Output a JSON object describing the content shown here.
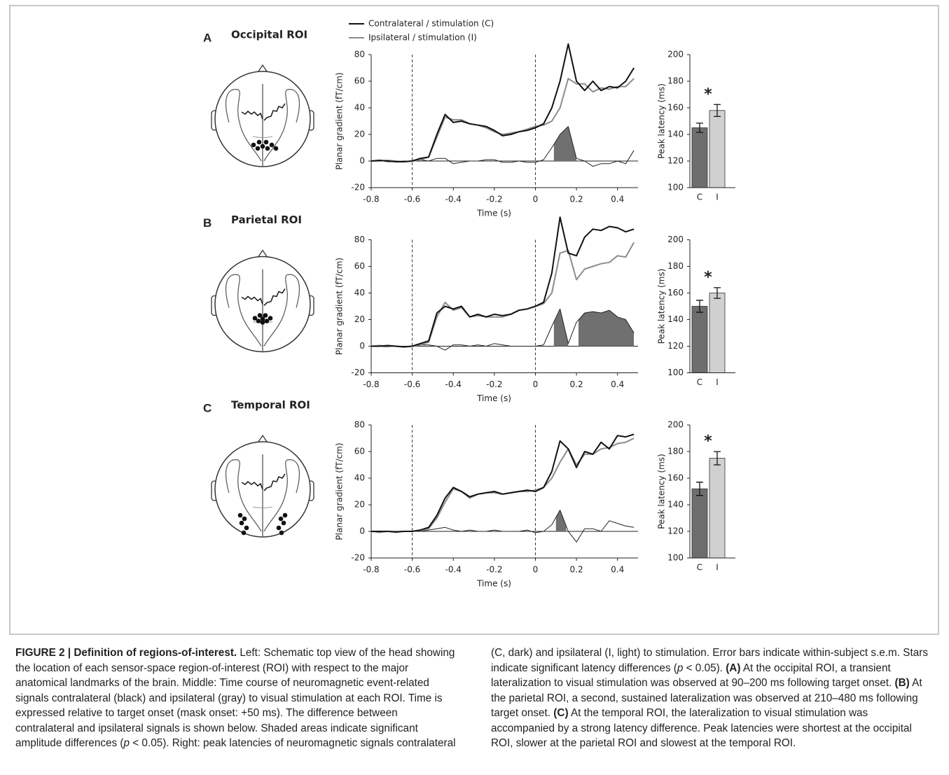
{
  "chart_data": [
    {
      "type": "line",
      "panel_label": "A",
      "title": "Occipital ROI",
      "xlabel": "Time (s)",
      "ylabel": "Planar gradient (fT/cm)",
      "xlim": [
        -0.8,
        0.5
      ],
      "ylim": [
        -20,
        80
      ],
      "xticks": [
        -0.8,
        -0.6,
        -0.4,
        -0.2,
        0,
        0.2,
        0.4
      ],
      "yticks": [
        -20,
        0,
        20,
        40,
        60,
        80
      ],
      "vlines": [
        -0.6,
        0
      ],
      "shaded": [
        [
          0.09,
          0.2
        ]
      ],
      "shade_color": "#707070",
      "x": [
        -0.8,
        -0.76,
        -0.72,
        -0.68,
        -0.64,
        -0.6,
        -0.56,
        -0.52,
        -0.48,
        -0.44,
        -0.4,
        -0.36,
        -0.32,
        -0.28,
        -0.24,
        -0.2,
        -0.16,
        -0.12,
        -0.08,
        -0.04,
        0,
        0.04,
        0.08,
        0.12,
        0.16,
        0.2,
        0.24,
        0.28,
        0.32,
        0.36,
        0.4,
        0.44,
        0.48
      ],
      "series": [
        {
          "name": "Contralateral / stimulation (C)",
          "color": "#111111",
          "values": [
            0,
            0.5,
            0,
            -0.5,
            -0.5,
            0,
            2,
            3,
            20,
            35,
            29,
            30,
            28,
            27,
            26,
            23,
            19,
            20,
            22,
            23,
            25,
            28,
            40,
            60,
            88,
            60,
            53,
            60,
            53,
            56,
            55,
            60,
            70
          ]
        },
        {
          "name": "Ipsilateral / stimulation (I)",
          "color": "#8c8c8c",
          "values": [
            0,
            0,
            0.5,
            0,
            -0.5,
            0,
            1,
            3,
            18,
            33,
            31,
            31,
            28,
            27,
            25,
            22,
            20,
            21,
            22,
            24,
            26,
            27,
            30,
            40,
            62,
            58,
            58,
            52,
            55,
            54,
            56,
            56,
            62
          ]
        },
        {
          "color": "#222222",
          "values": [
            0,
            0.5,
            -0.5,
            -0.5,
            0,
            0,
            1,
            0,
            2,
            2,
            -2,
            -1,
            0,
            0,
            1,
            1,
            -1,
            -1,
            0,
            -1,
            -1,
            1,
            10,
            20,
            26,
            2,
            0,
            -4,
            -2,
            -2,
            0,
            -2,
            8
          ]
        }
      ]
    },
    {
      "type": "bar",
      "ylabel": "Peak latency (ms)",
      "categories": [
        "C",
        "I"
      ],
      "values": [
        145,
        158
      ],
      "errors": [
        3.5,
        4.5
      ],
      "colors": [
        "#6e6e6e",
        "#d0d0d0"
      ],
      "ylim": [
        100,
        200
      ],
      "yticks": [
        100,
        120,
        140,
        160,
        180,
        200
      ],
      "annotation": "*"
    },
    {
      "type": "line",
      "panel_label": "B",
      "title": "Parietal ROI",
      "xlabel": "Time (s)",
      "ylabel": "Planar gradient (fT/cm)",
      "xlim": [
        -0.8,
        0.5
      ],
      "ylim": [
        -20,
        80
      ],
      "xticks": [
        -0.8,
        -0.6,
        -0.4,
        -0.2,
        0,
        0.2,
        0.4
      ],
      "yticks": [
        -20,
        0,
        20,
        40,
        60,
        80
      ],
      "vlines": [
        -0.6,
        0
      ],
      "shaded": [
        [
          0.09,
          0.16
        ],
        [
          0.21,
          0.48
        ]
      ],
      "shade_color": "#707070",
      "x": [
        -0.8,
        -0.76,
        -0.72,
        -0.68,
        -0.64,
        -0.6,
        -0.56,
        -0.52,
        -0.48,
        -0.44,
        -0.4,
        -0.36,
        -0.32,
        -0.28,
        -0.24,
        -0.2,
        -0.16,
        -0.12,
        -0.08,
        -0.04,
        0,
        0.04,
        0.08,
        0.12,
        0.16,
        0.2,
        0.24,
        0.28,
        0.32,
        0.36,
        0.4,
        0.44,
        0.48
      ],
      "series": [
        {
          "color": "#111111",
          "values": [
            0,
            0,
            0.5,
            0,
            -0.5,
            0,
            2,
            4,
            25,
            30,
            28,
            30,
            22,
            24,
            22,
            24,
            23,
            24,
            27,
            28,
            30,
            33,
            55,
            97,
            70,
            68,
            82,
            88,
            87,
            90,
            89,
            86,
            88
          ]
        },
        {
          "color": "#8c8c8c",
          "values": [
            0,
            0.5,
            0,
            0,
            -0.5,
            0,
            1,
            3,
            22,
            33,
            27,
            29,
            22,
            23,
            22,
            22,
            22,
            24,
            27,
            28,
            30,
            32,
            40,
            70,
            72,
            50,
            58,
            60,
            62,
            63,
            68,
            67,
            78
          ]
        },
        {
          "color": "#222222",
          "values": [
            0,
            0,
            -0.5,
            0,
            0,
            0,
            1,
            1,
            0,
            -3,
            1,
            1,
            0,
            1,
            0,
            2,
            1,
            0,
            0,
            0,
            0,
            1,
            15,
            28,
            2,
            18,
            25,
            26,
            25,
            27,
            22,
            20,
            10
          ]
        }
      ]
    },
    {
      "type": "bar",
      "ylabel": "Peak latency (ms)",
      "categories": [
        "C",
        "I"
      ],
      "values": [
        150,
        160
      ],
      "errors": [
        4.5,
        4
      ],
      "colors": [
        "#6e6e6e",
        "#d0d0d0"
      ],
      "ylim": [
        100,
        200
      ],
      "yticks": [
        100,
        120,
        140,
        160,
        180,
        200
      ],
      "annotation": "*"
    },
    {
      "type": "line",
      "panel_label": "C",
      "title": "Temporal ROI",
      "xlabel": "Time (s)",
      "ylabel": "Planar gradient (fT/cm)",
      "xlim": [
        -0.8,
        0.5
      ],
      "ylim": [
        -20,
        80
      ],
      "xticks": [
        -0.8,
        -0.6,
        -0.4,
        -0.2,
        0,
        0.2,
        0.4
      ],
      "yticks": [
        -20,
        0,
        20,
        40,
        60,
        80
      ],
      "vlines": [
        -0.6,
        0
      ],
      "shaded": [
        [
          0.1,
          0.15
        ]
      ],
      "shade_color": "#707070",
      "x": [
        -0.8,
        -0.76,
        -0.72,
        -0.68,
        -0.64,
        -0.6,
        -0.56,
        -0.52,
        -0.48,
        -0.44,
        -0.4,
        -0.36,
        -0.32,
        -0.28,
        -0.24,
        -0.2,
        -0.16,
        -0.12,
        -0.08,
        -0.04,
        0,
        0.04,
        0.08,
        0.12,
        0.16,
        0.2,
        0.24,
        0.28,
        0.32,
        0.36,
        0.4,
        0.44,
        0.48
      ],
      "series": [
        {
          "color": "#111111",
          "values": [
            0,
            0,
            0,
            -0.5,
            0,
            0,
            1,
            3,
            12,
            25,
            33,
            30,
            26,
            28,
            29,
            30,
            28,
            29,
            30,
            31,
            30,
            33,
            45,
            68,
            62,
            48,
            60,
            58,
            67,
            62,
            72,
            71,
            73
          ]
        },
        {
          "color": "#8c8c8c",
          "values": [
            0,
            -0.5,
            0,
            0,
            0,
            0,
            1,
            2,
            10,
            22,
            32,
            30,
            25,
            28,
            29,
            29,
            28,
            29,
            30,
            30,
            31,
            33,
            40,
            52,
            62,
            50,
            58,
            58,
            62,
            63,
            66,
            67,
            70
          ]
        },
        {
          "color": "#222222",
          "values": [
            0,
            -1,
            0,
            0,
            0,
            0,
            0,
            1,
            2,
            3,
            1,
            0,
            1,
            0,
            0,
            1,
            0,
            0,
            0,
            1,
            -1,
            0,
            5,
            16,
            0,
            -8,
            2,
            2,
            0,
            8,
            6,
            4,
            3
          ]
        }
      ]
    },
    {
      "type": "bar",
      "ylabel": "Peak latency (ms)",
      "categories": [
        "C",
        "I"
      ],
      "values": [
        152,
        175
      ],
      "errors": [
        5,
        5
      ],
      "colors": [
        "#6e6e6e",
        "#d0d0d0"
      ],
      "ylim": [
        100,
        200
      ],
      "yticks": [
        100,
        120,
        140,
        160,
        180,
        200
      ],
      "annotation": "*"
    }
  ],
  "caption": {
    "runs": [
      {
        "text": "FIGURE 2 | Definition of regions-of-interest.",
        "bold": true
      },
      {
        "text": " Left: Schematic top view of the head showing the location of each sensor-space region-of-interest (ROI) with respect to the major anatomical landmarks of the brain. Middle: Time course of neuromagnetic event-related signals contralateral (black) and ipsilateral (gray) to visual stimulation at each ROI. Time is expressed relative to target onset (mask onset: +50 ms). The difference between contralateral and ipsilateral signals is shown below. Shaded areas indicate significant amplitude differences ("
      },
      {
        "text": "p",
        "italic": true
      },
      {
        "text": " < 0.05). Right: peak latencies of neuromagnetic signals contralateral (C, dark) and ipsilateral (I, light) to stimulation. Error bars indicate within-subject s.e.m. Stars indicate significant latency differences ("
      },
      {
        "text": "p",
        "italic": true
      },
      {
        "text": " < 0.05). "
      },
      {
        "text": "(A)",
        "bold": true
      },
      {
        "text": " At the occipital ROI, a transient lateralization to visual stimulation was observed at 90–200 ms following target onset. "
      },
      {
        "text": "(B)",
        "bold": true
      },
      {
        "text": " At the parietal ROI, a second, sustained lateralization was observed at 210–480 ms following target onset. "
      },
      {
        "text": "(C)",
        "bold": true
      },
      {
        "text": " At the temporal ROI, the lateralization to visual stimulation was accompanied by a strong latency difference. Peak latencies were shortest at the occipital ROI, slower at the parietal ROI and slowest at the temporal ROI."
      }
    ]
  }
}
